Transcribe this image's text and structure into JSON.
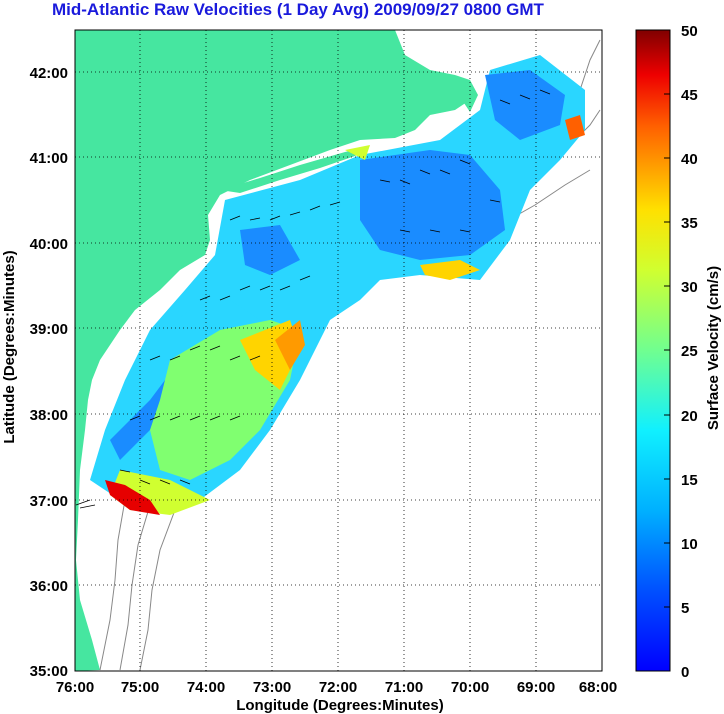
{
  "title": "Mid-Atlantic Raw Velocities (1 Day Avg) 2009/09/27 0800 GMT",
  "axes": {
    "xlabel": "Longitude (Degrees:Minutes)",
    "ylabel": "Latitude (Degrees:Minutes)",
    "x_ticks": [
      "76:00",
      "75:00",
      "74:00",
      "73:00",
      "72:00",
      "71:00",
      "70:00",
      "69:00",
      "68:00"
    ],
    "y_ticks": [
      "42:00",
      "41:00",
      "40:00",
      "39:00",
      "38:00",
      "37:00",
      "36:00",
      "35:00"
    ]
  },
  "colorbar": {
    "label": "Surface Velocity (cm/s)",
    "ticks": [
      "50",
      "45",
      "40",
      "35",
      "30",
      "25",
      "20",
      "15",
      "10",
      "5",
      "0"
    ],
    "range": [
      0,
      50
    ]
  },
  "colors": {
    "land": "#46e6a0",
    "title": "#1a1adc",
    "coastline": "#888888"
  }
}
